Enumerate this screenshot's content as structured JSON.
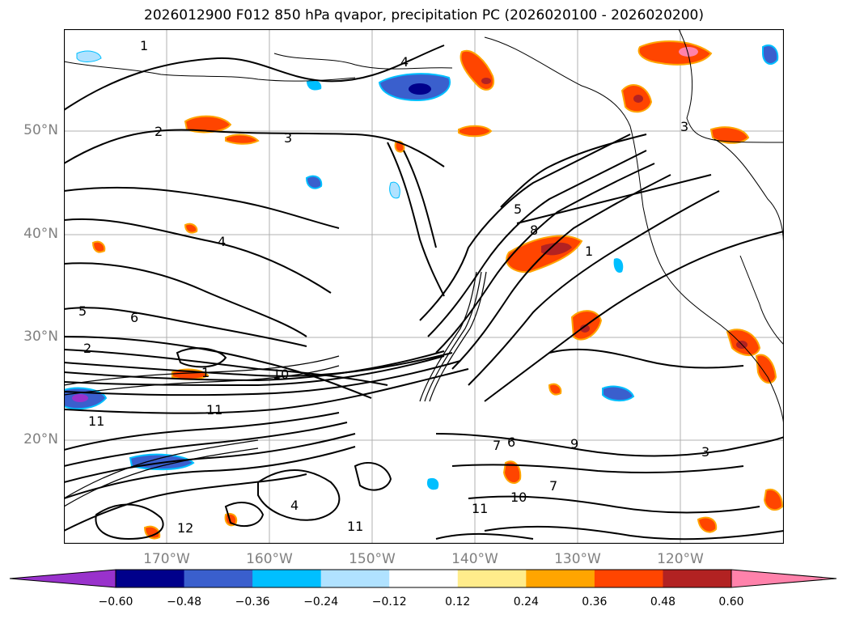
{
  "title": "2026012900 F012 850 hPa qvapor, precipitation PC (2026020100 - 2026020200)",
  "lat_labels": [
    "50°N",
    "40°N",
    "30°N",
    "20°N"
  ],
  "lon_labels": [
    "170°W",
    "160°W",
    "150°W",
    "140°W",
    "130°W",
    "120°W"
  ],
  "contour_labels": [
    "1",
    "2",
    "3",
    "4",
    "5",
    "6",
    "7",
    "8",
    "9",
    "10",
    "11",
    "12"
  ],
  "colorbar": {
    "ticks": [
      "−0.60",
      "−0.48",
      "−0.36",
      "−0.24",
      "−0.12",
      "0.12",
      "0.24",
      "0.36",
      "0.48",
      "0.60"
    ],
    "colors": [
      "#9932cc",
      "#00008b",
      "#3a5fcd",
      "#00bfff",
      "#b0e2ff",
      "#ffffff",
      "#ffec8b",
      "#ffa500",
      "#ff4500",
      "#b22222",
      "#ff82ab"
    ]
  }
}
